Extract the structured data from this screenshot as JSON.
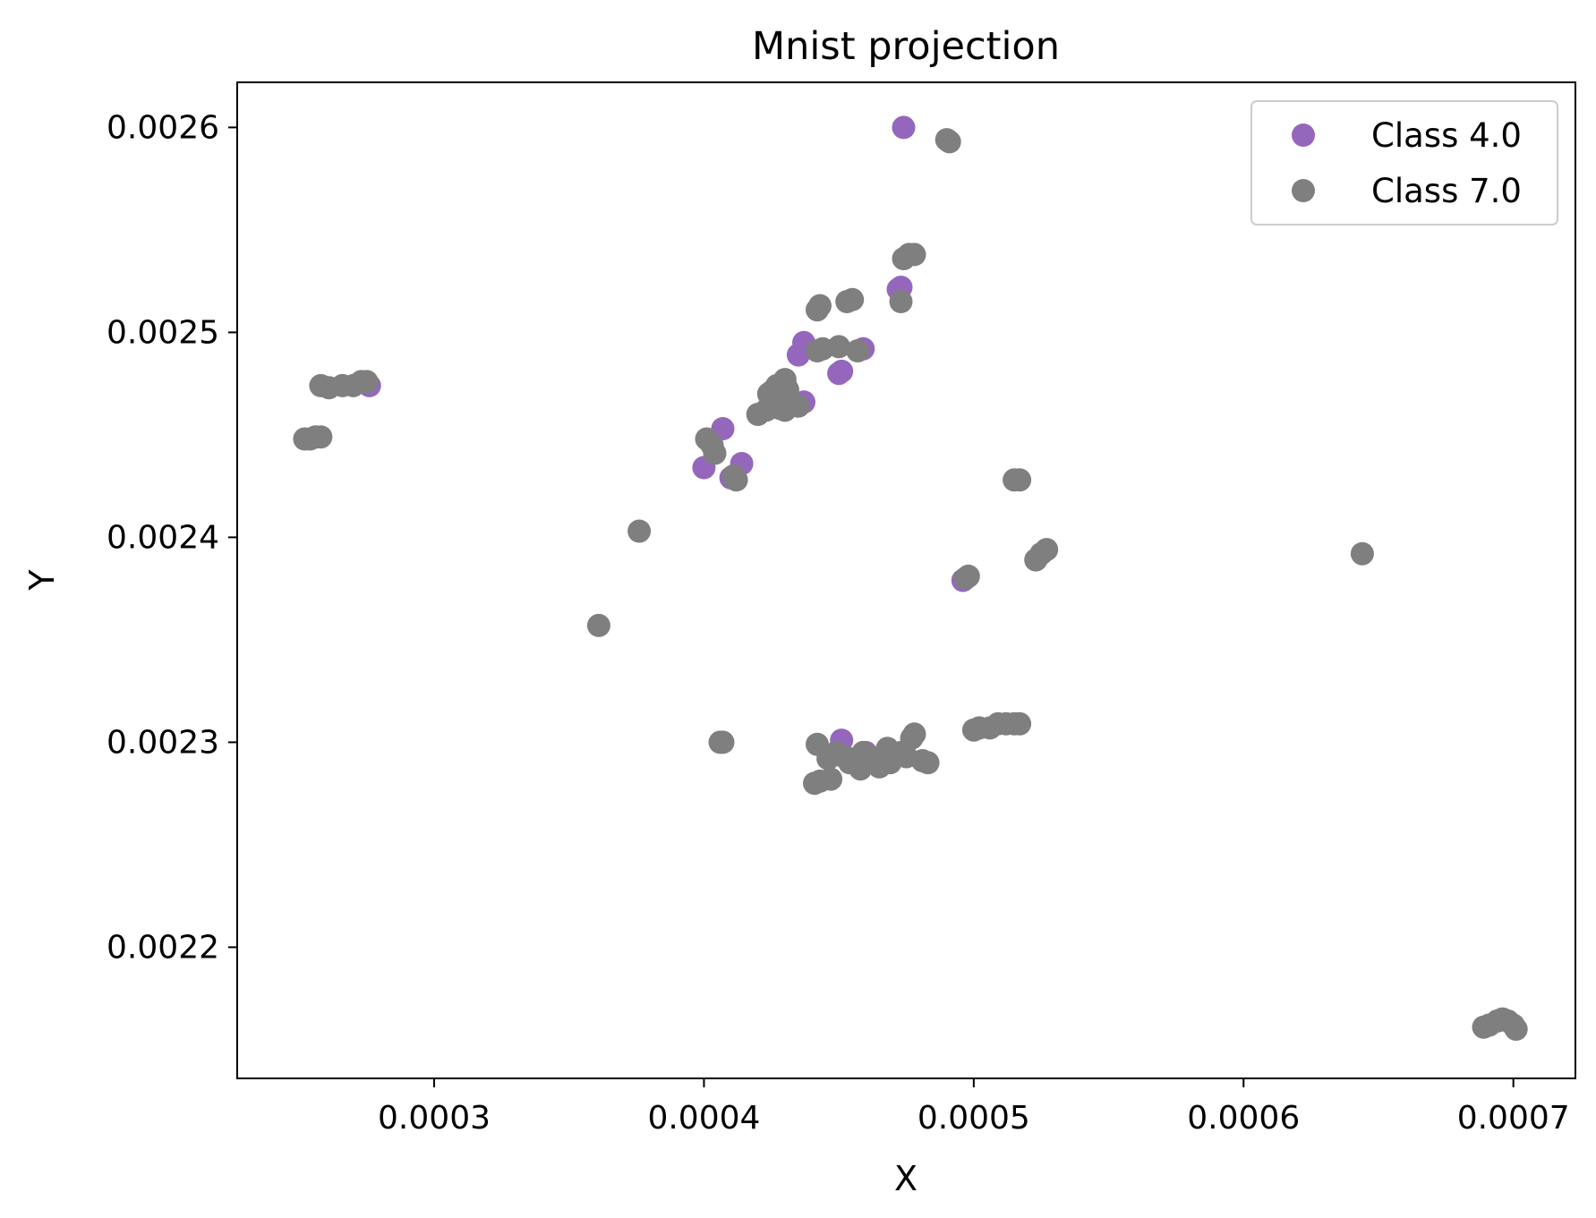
{
  "chart_data": {
    "type": "scatter",
    "title": "Mnist projection",
    "xlabel": "X",
    "ylabel": "Y",
    "xlim": [
      0.000227,
      0.000723
    ],
    "ylim": [
      0.002136,
      0.002622
    ],
    "xticks": [
      0.0003,
      0.0004,
      0.0005,
      0.0006,
      0.0007
    ],
    "xtick_labels": [
      "0.0003",
      "0.0004",
      "0.0005",
      "0.0006",
      "0.0007"
    ],
    "yticks": [
      0.0022,
      0.0023,
      0.0024,
      0.0025,
      0.0026
    ],
    "ytick_labels": [
      "0.0022",
      "0.0023",
      "0.0024",
      "0.0025",
      "0.0026"
    ],
    "grid": false,
    "legend_position": "top-right",
    "series": [
      {
        "name": "Class 4.0",
        "color": "#9467bd",
        "points": [
          [
            0.000474,
            0.0026
          ],
          [
            0.000473,
            0.002522
          ],
          [
            0.000472,
            0.002521
          ],
          [
            0.000437,
            0.002495
          ],
          [
            0.000435,
            0.002489
          ],
          [
            0.000451,
            0.002481
          ],
          [
            0.00045,
            0.00248
          ],
          [
            0.000459,
            0.002492
          ],
          [
            0.000437,
            0.002466
          ],
          [
            0.000407,
            0.002453
          ],
          [
            0.0004,
            0.002434
          ],
          [
            0.000414,
            0.002436
          ],
          [
            0.00041,
            0.002429
          ],
          [
            0.000276,
            0.002474
          ],
          [
            0.000496,
            0.002379
          ],
          [
            0.000451,
            0.002301
          ],
          [
            0.00046,
            0.002295
          ]
        ]
      },
      {
        "name": "Class 7.0",
        "color": "#7f7f7f",
        "points": [
          [
            0.00049,
            0.002594
          ],
          [
            0.000491,
            0.002593
          ],
          [
            0.000476,
            0.002538
          ],
          [
            0.000474,
            0.002536
          ],
          [
            0.000478,
            0.002538
          ],
          [
            0.000473,
            0.002515
          ],
          [
            0.000442,
            0.002511
          ],
          [
            0.000443,
            0.002513
          ],
          [
            0.000453,
            0.002515
          ],
          [
            0.000455,
            0.002516
          ],
          [
            0.000442,
            0.002491
          ],
          [
            0.000444,
            0.002492
          ],
          [
            0.00045,
            0.002493
          ],
          [
            0.000457,
            0.002491
          ],
          [
            0.00043,
            0.002477
          ],
          [
            0.000427,
            0.002474
          ],
          [
            0.000425,
            0.002471
          ],
          [
            0.000424,
            0.00247
          ],
          [
            0.000431,
            0.002472
          ],
          [
            0.000429,
            0.002468
          ],
          [
            0.000426,
            0.002466
          ],
          [
            0.000432,
            0.002465
          ],
          [
            0.000428,
            0.002463
          ],
          [
            0.000435,
            0.002464
          ],
          [
            0.000423,
            0.002462
          ],
          [
            0.00042,
            0.00246
          ],
          [
            0.00043,
            0.002462
          ],
          [
            0.000401,
            0.002448
          ],
          [
            0.000403,
            0.002445
          ],
          [
            0.000404,
            0.002441
          ],
          [
            0.000411,
            0.00243
          ],
          [
            0.000412,
            0.002428
          ],
          [
            0.000258,
            0.002474
          ],
          [
            0.000261,
            0.002473
          ],
          [
            0.000266,
            0.002474
          ],
          [
            0.00027,
            0.002474
          ],
          [
            0.000273,
            0.002476
          ],
          [
            0.000275,
            0.002476
          ],
          [
            0.000252,
            0.002448
          ],
          [
            0.000254,
            0.002448
          ],
          [
            0.000256,
            0.002449
          ],
          [
            0.000258,
            0.002449
          ],
          [
            0.000376,
            0.002403
          ],
          [
            0.000361,
            0.002357
          ],
          [
            0.000515,
            0.002428
          ],
          [
            0.000517,
            0.002428
          ],
          [
            0.000497,
            0.00238
          ],
          [
            0.000498,
            0.002381
          ],
          [
            0.000523,
            0.002389
          ],
          [
            0.000525,
            0.002392
          ],
          [
            0.000527,
            0.002394
          ],
          [
            0.000644,
            0.002392
          ],
          [
            0.000406,
            0.0023
          ],
          [
            0.000407,
            0.0023
          ],
          [
            0.000442,
            0.002299
          ],
          [
            0.000441,
            0.00228
          ],
          [
            0.000443,
            0.002281
          ],
          [
            0.000447,
            0.002282
          ],
          [
            0.000446,
            0.002292
          ],
          [
            0.000449,
            0.002295
          ],
          [
            0.000452,
            0.002293
          ],
          [
            0.000454,
            0.00229
          ],
          [
            0.000456,
            0.002292
          ],
          [
            0.000458,
            0.002287
          ],
          [
            0.000459,
            0.002295
          ],
          [
            0.000461,
            0.002293
          ],
          [
            0.000463,
            0.00229
          ],
          [
            0.000465,
            0.002288
          ],
          [
            0.000466,
            0.002292
          ],
          [
            0.000468,
            0.002297
          ],
          [
            0.000469,
            0.00229
          ],
          [
            0.000471,
            0.002293
          ],
          [
            0.000473,
            0.002295
          ],
          [
            0.000475,
            0.002293
          ],
          [
            0.000477,
            0.002302
          ],
          [
            0.000478,
            0.002304
          ],
          [
            0.000481,
            0.002291
          ],
          [
            0.000483,
            0.00229
          ],
          [
            0.0005,
            0.002306
          ],
          [
            0.000502,
            0.002307
          ],
          [
            0.000506,
            0.002307
          ],
          [
            0.000509,
            0.002309
          ],
          [
            0.000512,
            0.002309
          ],
          [
            0.000515,
            0.002309
          ],
          [
            0.000517,
            0.002309
          ],
          [
            0.000689,
            0.002161
          ],
          [
            0.000691,
            0.002162
          ],
          [
            0.000694,
            0.002164
          ],
          [
            0.000696,
            0.002165
          ],
          [
            0.000698,
            0.002164
          ],
          [
            0.0007,
            0.002162
          ],
          [
            0.000701,
            0.00216
          ]
        ]
      }
    ]
  }
}
